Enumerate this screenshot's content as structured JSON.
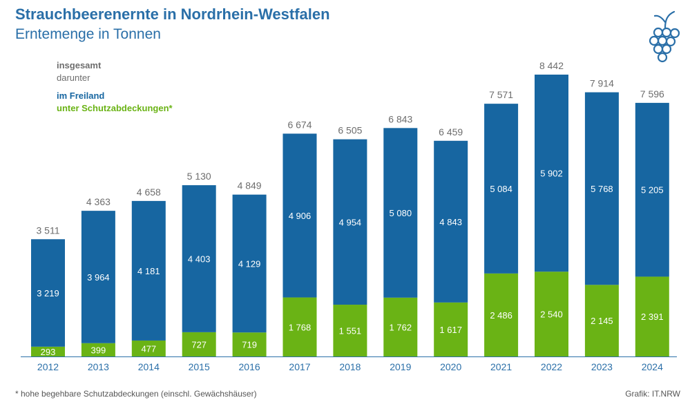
{
  "title": "Strauchbeerenernte in Nordrhein-Westfalen",
  "subtitle": "Erntemenge in Tonnen",
  "legend": {
    "total": "insgesamt",
    "of_which": "darunter",
    "open_field": "im Freiland",
    "under_cover": "unter Schutzabdeckungen*"
  },
  "footnote": "* hohe begehbare Schutzabdeckungen (einschl. Gewächshäuser)",
  "source": "Grafik: IT.NRW",
  "colors": {
    "title": "#2a6fa8",
    "open_field": "#1766a1",
    "under_cover": "#6ab315",
    "total_label": "#6d6d6d",
    "axis_label": "#2a6fa8"
  },
  "chart_data": {
    "type": "bar",
    "stacked": true,
    "categories": [
      "2012",
      "2013",
      "2014",
      "2015",
      "2016",
      "2017",
      "2018",
      "2019",
      "2020",
      "2021",
      "2022",
      "2023",
      "2024"
    ],
    "series": [
      {
        "name": "unter Schutzabdeckungen*",
        "values": [
          293,
          399,
          477,
          727,
          719,
          1768,
          1551,
          1762,
          1617,
          2486,
          2540,
          2145,
          2391
        ],
        "labels": [
          "293",
          "399",
          "477",
          "727",
          "719",
          "1 768",
          "1 551",
          "1 762",
          "1 617",
          "2 486",
          "2 540",
          "2 145",
          "2 391"
        ]
      },
      {
        "name": "im Freiland",
        "values": [
          3219,
          3964,
          4181,
          4403,
          4129,
          4906,
          4954,
          5080,
          4843,
          5084,
          5902,
          5768,
          5205
        ],
        "labels": [
          "3 219",
          "3 964",
          "4 181",
          "4 403",
          "4 129",
          "4 906",
          "4 954",
          "5 080",
          "4 843",
          "5 084",
          "5 902",
          "5 768",
          "5 205"
        ]
      }
    ],
    "totals": [
      3511,
      4363,
      4658,
      5130,
      4849,
      6674,
      6505,
      6843,
      6459,
      7571,
      8442,
      7914,
      7596
    ],
    "total_labels": [
      "3 511",
      "4 363",
      "4 658",
      "5 130",
      "4 849",
      "6 674",
      "6 505",
      "6 843",
      "6 459",
      "7 571",
      "8 442",
      "7 914",
      "7 596"
    ],
    "ylim": [
      0,
      8442
    ],
    "grid": false,
    "legend_position": "top-left"
  }
}
